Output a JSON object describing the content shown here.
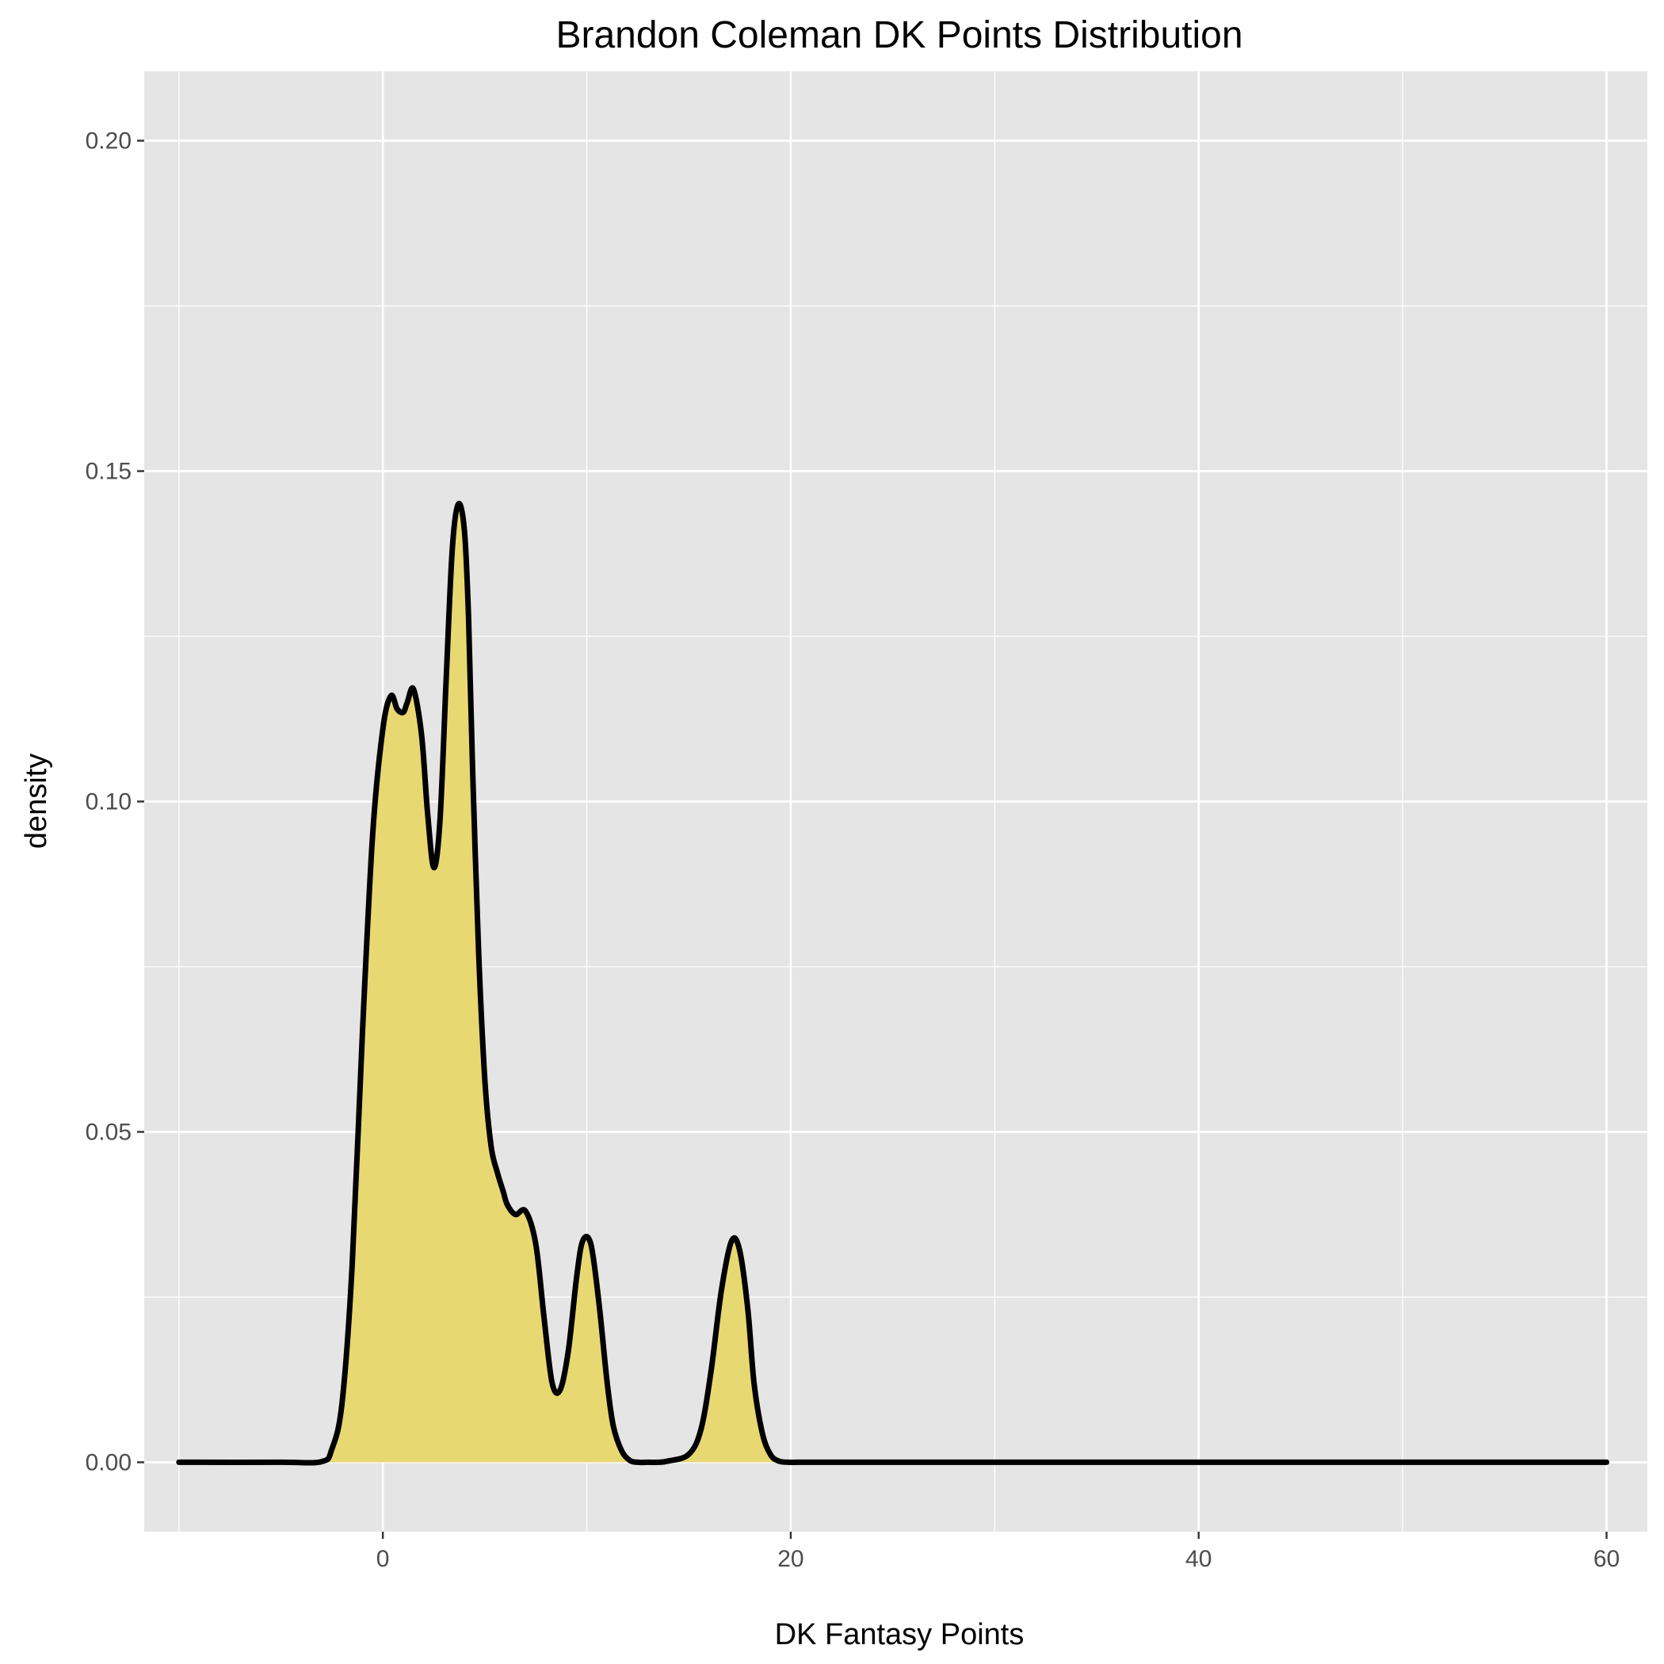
{
  "chart_data": {
    "type": "area",
    "title": "Brandon Coleman DK Points Distribution",
    "xlabel": "DK Fantasy Points",
    "ylabel": "density",
    "xlim": [
      -11.7,
      62.0
    ],
    "ylim": [
      -0.0105,
      0.2105
    ],
    "x_ticks": [
      0,
      20,
      40,
      60
    ],
    "x_tick_labels": [
      "0",
      "20",
      "40",
      "60"
    ],
    "y_ticks": [
      0,
      0.05,
      0.1,
      0.15,
      0.2
    ],
    "y_tick_labels": [
      "0.00",
      "0.05",
      "0.10",
      "0.15",
      "0.20"
    ],
    "grid": true,
    "legend": "none",
    "colors": {
      "panel": "#e5e5e5",
      "grid": "#ffffff",
      "fill": "#e8d872",
      "line": "#000000"
    },
    "series": [
      {
        "x": [
          -10,
          -5,
          -3,
          -2.5,
          -2,
          -1.5,
          -1,
          -0.5,
          0,
          0.4,
          0.7,
          1.0,
          1.2,
          1.5,
          1.9,
          2.2,
          2.5,
          2.8,
          3.1,
          3.4,
          3.7,
          4.0,
          4.2,
          4.4,
          4.7,
          5.0,
          5.3,
          5.6,
          5.9,
          6.1,
          6.5,
          7.0,
          7.5,
          7.9,
          8.3,
          8.7,
          9.1,
          9.5,
          9.8,
          10.2,
          10.6,
          11.0,
          11.3,
          11.7,
          12.1,
          12.5,
          13.0,
          13.5,
          14.0,
          15.0,
          15.6,
          16.1,
          16.6,
          17.1,
          17.5,
          17.9,
          18.2,
          18.6,
          19.0,
          19.4,
          19.9,
          20.3,
          21.0,
          25,
          30,
          40,
          50,
          60
        ],
        "y": [
          0,
          0,
          0.0001,
          0.002,
          0.009,
          0.03,
          0.065,
          0.095,
          0.111,
          0.116,
          0.114,
          0.1135,
          0.115,
          0.117,
          0.11,
          0.098,
          0.09,
          0.097,
          0.118,
          0.138,
          0.145,
          0.141,
          0.128,
          0.105,
          0.077,
          0.058,
          0.048,
          0.044,
          0.041,
          0.039,
          0.0375,
          0.038,
          0.033,
          0.022,
          0.012,
          0.011,
          0.017,
          0.028,
          0.0335,
          0.033,
          0.024,
          0.012,
          0.0055,
          0.0018,
          0.0003,
          0,
          0,
          0,
          0.0002,
          0.0012,
          0.005,
          0.014,
          0.026,
          0.0335,
          0.032,
          0.023,
          0.012,
          0.0045,
          0.0012,
          0.0002,
          0,
          0,
          0,
          0,
          0,
          0,
          0,
          0
        ]
      }
    ]
  }
}
